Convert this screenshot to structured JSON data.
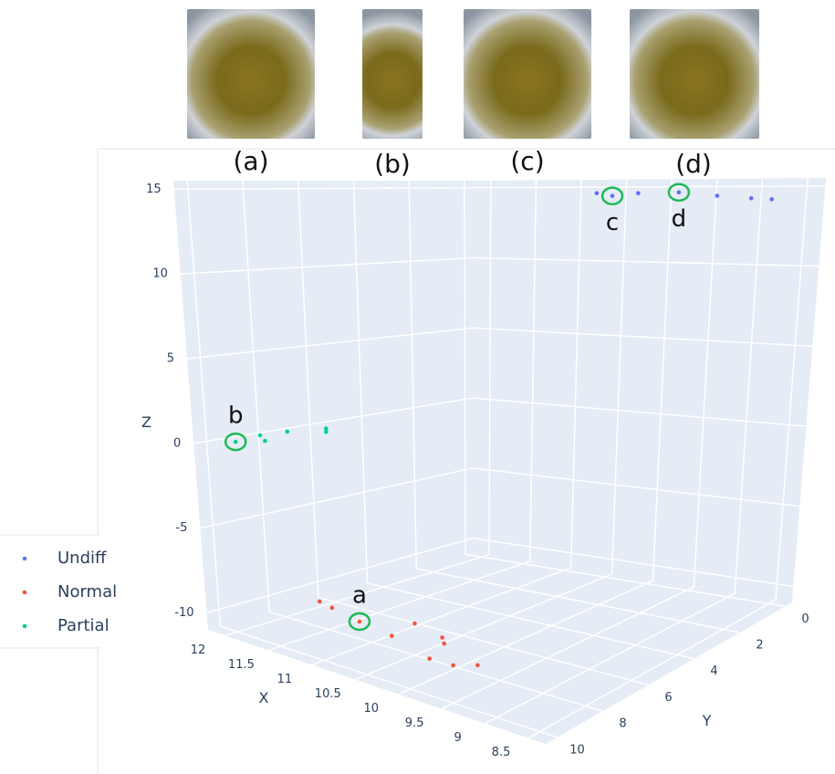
{
  "image_labels": [
    "(a)",
    "(b)",
    "(c)",
    "(d)"
  ],
  "chart_data": {
    "type": "scatter3d",
    "x_label": "X",
    "y_label": "Y",
    "z_label": "Z",
    "xlim": [
      8.3,
      12.2
    ],
    "ylim": [
      -0.3,
      10.5
    ],
    "zlim": [
      -11,
      15.5
    ],
    "xticks": [
      8.5,
      9,
      9.5,
      10,
      10.5,
      11,
      11.5,
      12
    ],
    "yticks": [
      0,
      2,
      4,
      6,
      8,
      10
    ],
    "zticks": [
      -10,
      -5,
      0,
      5,
      10,
      15
    ],
    "grid": true,
    "legend": "left",
    "series": [
      {
        "name": "Undiff",
        "color": "#636efa",
        "x": [
          10.6,
          10.4,
          10.2,
          9.7,
          9.2,
          8.8,
          8.55
        ],
        "y": [
          0.5,
          0.6,
          0.3,
          0.5,
          0.8,
          0.9,
          1.0
        ],
        "z": [
          14.5,
          14.3,
          14.5,
          14.5,
          14.2,
          14.0,
          13.9
        ]
      },
      {
        "name": "Normal",
        "color": "#ef553b",
        "x": [
          11.6,
          11.4,
          11.0,
          10.5,
          10.6,
          10.1,
          10.05,
          10.0,
          9.7,
          9.5
        ],
        "y": [
          8.0,
          8.2,
          8.5,
          8.0,
          8.6,
          8.3,
          8.4,
          9.2,
          9.3,
          9.0
        ],
        "z": [
          -9.5,
          -9.5,
          -9.6,
          -9.3,
          -9.8,
          -9.4,
          -9.6,
          -9.9,
          -9.8,
          -9.7
        ]
      },
      {
        "name": "Partial",
        "color": "#00cc96",
        "x": [
          12.0,
          11.9,
          11.85,
          11.8,
          11.6,
          11.6
        ],
        "y": [
          9.6,
          9.0,
          9.0,
          8.3,
          7.5,
          7.5
        ],
        "z": [
          0.0,
          0.3,
          0.0,
          0.4,
          0.5,
          0.3
        ]
      }
    ],
    "annotations": [
      {
        "text": "a",
        "x": 11.0,
        "y": 8.5,
        "z": -9.6,
        "position": "above"
      },
      {
        "text": "b",
        "x": 12.0,
        "y": 9.6,
        "z": 0.0,
        "position": "above"
      },
      {
        "text": "c",
        "x": 10.4,
        "y": 0.6,
        "z": 14.3,
        "position": "below"
      },
      {
        "text": "d",
        "x": 9.7,
        "y": 0.5,
        "z": 14.5,
        "position": "below"
      }
    ]
  }
}
